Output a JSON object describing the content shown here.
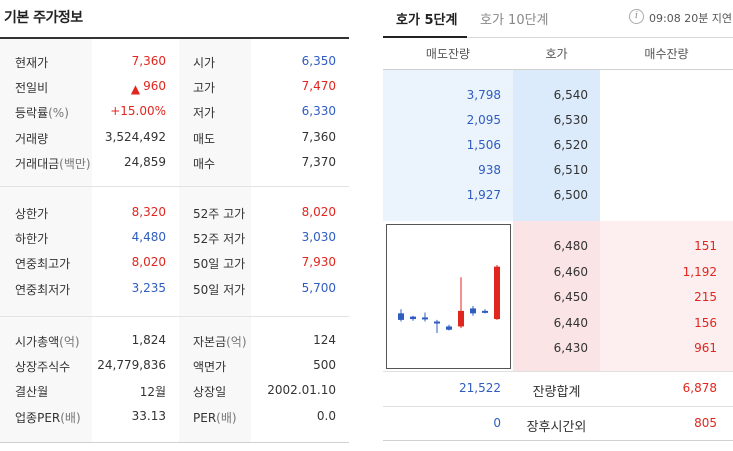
{
  "basic": {
    "title": "기본 주가정보",
    "group1": [
      {
        "l1": "현재가",
        "u1": "",
        "v1": "7,360",
        "c1": "red",
        "arrow": false,
        "l2": "시가",
        "u2": "",
        "v2": "6,350",
        "c2": "blue"
      },
      {
        "l1": "전일비",
        "u1": "",
        "v1": "960",
        "c1": "red",
        "arrow": true,
        "l2": "고가",
        "u2": "",
        "v2": "7,470",
        "c2": "red"
      },
      {
        "l1": "등락률",
        "u1": "(%)",
        "v1": "+15.00%",
        "c1": "red",
        "arrow": false,
        "l2": "저가",
        "u2": "",
        "v2": "6,330",
        "c2": "blue"
      },
      {
        "l1": "거래량",
        "u1": "",
        "v1": "3,524,492",
        "c1": "dark",
        "arrow": false,
        "l2": "매도",
        "u2": "",
        "v2": "7,360",
        "c2": "dark"
      },
      {
        "l1": "거래대금",
        "u1": "(백만)",
        "v1": "24,859",
        "c1": "dark",
        "arrow": false,
        "l2": "매수",
        "u2": "",
        "v2": "7,370",
        "c2": "dark"
      }
    ],
    "group2": [
      {
        "l1": "상한가",
        "u1": "",
        "v1": "8,320",
        "c1": "red",
        "arrow": false,
        "l2": "52주 고가",
        "u2": "",
        "v2": "8,020",
        "c2": "red"
      },
      {
        "l1": "하한가",
        "u1": "",
        "v1": "4,480",
        "c1": "blue",
        "arrow": false,
        "l2": "52주 저가",
        "u2": "",
        "v2": "3,030",
        "c2": "blue"
      },
      {
        "l1": "연중최고가",
        "u1": "",
        "v1": "8,020",
        "c1": "red",
        "arrow": false,
        "l2": "50일 고가",
        "u2": "",
        "v2": "7,930",
        "c2": "red"
      },
      {
        "l1": "연중최저가",
        "u1": "",
        "v1": "3,235",
        "c1": "blue",
        "arrow": false,
        "l2": "50일 저가",
        "u2": "",
        "v2": "5,700",
        "c2": "blue"
      }
    ],
    "group3": [
      {
        "l1": "시가총액",
        "u1": "(억)",
        "v1": "1,824",
        "c1": "dark",
        "arrow": false,
        "l2": "자본금",
        "u2": "(억)",
        "v2": "124",
        "c2": "dark"
      },
      {
        "l1": "상장주식수",
        "u1": "",
        "v1": "24,779,836",
        "c1": "dark",
        "arrow": false,
        "l2": "액면가",
        "u2": "",
        "v2": "500",
        "c2": "dark"
      },
      {
        "l1": "결산월",
        "u1": "",
        "v1": "12월",
        "c1": "dark",
        "arrow": false,
        "l2": "상장일",
        "u2": "",
        "v2": "2002.01.10",
        "c2": "dark"
      },
      {
        "l1": "업종PER",
        "u1": "(배)",
        "v1": "33.13",
        "c1": "dark",
        "arrow": false,
        "l2": "PER",
        "u2": "(배)",
        "v2": "0.0",
        "c2": "dark"
      }
    ]
  },
  "orderbook": {
    "tab_active": "호가 5단계",
    "tab_inactive": "호가 10단계",
    "info_icon": "i",
    "delay_text": "09:08 20분 지연",
    "col_ask": "매도잔량",
    "col_price": "호가",
    "col_bid": "매수잔량",
    "asks": [
      {
        "vol": "3,798",
        "price": "6,540"
      },
      {
        "vol": "2,095",
        "price": "6,530"
      },
      {
        "vol": "1,506",
        "price": "6,520"
      },
      {
        "vol": "938",
        "price": "6,510"
      },
      {
        "vol": "1,927",
        "price": "6,500"
      }
    ],
    "bids": [
      {
        "price": "6,480",
        "vol": "151"
      },
      {
        "price": "6,460",
        "vol": "1,192"
      },
      {
        "price": "6,450",
        "vol": "215"
      },
      {
        "price": "6,440",
        "vol": "156"
      },
      {
        "price": "6,430",
        "vol": "961"
      }
    ],
    "total_label": "잔량합계",
    "total_ask": "21,522",
    "total_bid": "6,878",
    "after_label": "장후시간외",
    "after_ask": "0",
    "after_bid": "805"
  },
  "candles": {
    "range": [
      6330,
      7470
    ],
    "items": [
      {
        "o": 6430,
        "c": 6350,
        "h": 6480,
        "l": 6330,
        "color": "blue"
      },
      {
        "o": 6390,
        "c": 6360,
        "h": 6400,
        "l": 6340,
        "color": "blue"
      },
      {
        "o": 6380,
        "c": 6370,
        "h": 6440,
        "l": 6330,
        "color": "blue"
      },
      {
        "o": 6330,
        "c": 6320,
        "h": 6350,
        "l": 6190,
        "color": "blue"
      },
      {
        "o": 6270,
        "c": 6230,
        "h": 6290,
        "l": 6220,
        "color": "blue"
      },
      {
        "o": 6270,
        "c": 6460,
        "h": 6870,
        "l": 6250,
        "color": "red"
      },
      {
        "o": 6490,
        "c": 6430,
        "h": 6520,
        "l": 6400,
        "color": "blue"
      },
      {
        "o": 6460,
        "c": 6440,
        "h": 6480,
        "l": 6430,
        "color": "blue"
      },
      {
        "o": 6360,
        "c": 7000,
        "h": 7020,
        "l": 6350,
        "color": "red"
      }
    ]
  },
  "colors": {
    "up": "#e0261f",
    "down": "#2f5cc0"
  }
}
